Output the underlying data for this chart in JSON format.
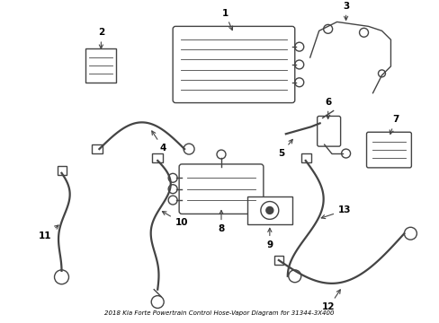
{
  "title": "2018 Kia Forte Powertrain Control Hose-Vapor Diagram for 31344-3X400",
  "background_color": "#ffffff",
  "line_color": "#444444",
  "text_color": "#000000",
  "figsize": [
    4.89,
    3.6
  ],
  "dpi": 100,
  "lw_main": 1.0,
  "lw_thick": 1.6,
  "lw_thin": 0.6
}
